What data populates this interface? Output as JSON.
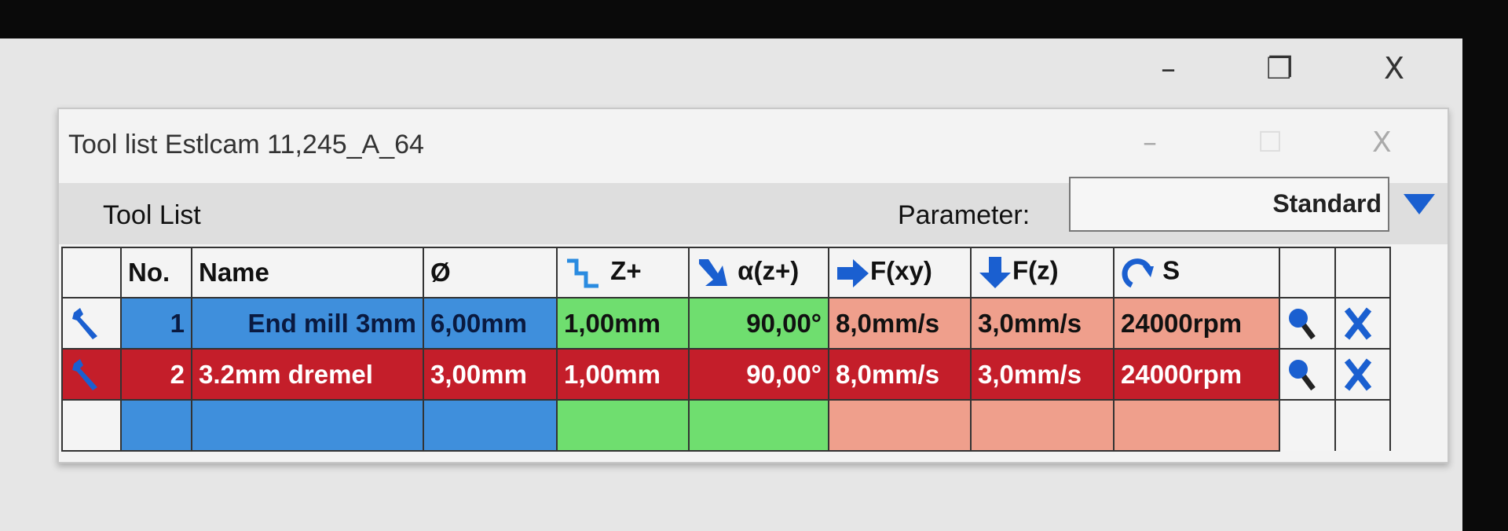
{
  "outer_window": {
    "minimize": "–",
    "restore": "❐",
    "close": "X"
  },
  "dialog": {
    "title": "Tool list Estlcam 11,245_A_64",
    "minimize": "–",
    "maximize": "☐",
    "close": "X",
    "toolbar": {
      "label": "Tool List",
      "parameter_label": "Parameter:",
      "parameter_value": "Standard"
    }
  },
  "table": {
    "headers": [
      "",
      "No.",
      "Name",
      "Ø",
      "Z+",
      "α(z+)",
      "F(xy)",
      "F(z)",
      "S",
      "",
      ""
    ],
    "header_icons": [
      "",
      "",
      "",
      "",
      "step-down-icon",
      "plunge-angle-icon",
      "arrow-right-icon",
      "arrow-down-icon",
      "spindle-rotation-icon",
      "",
      ""
    ],
    "rows": [
      {
        "no": "1",
        "name": "End mill 3mm",
        "diameter": "6,00mm",
        "z_step": "1,00mm",
        "angle": "90,00°",
        "feed_xy": "8,0mm/s",
        "feed_z": "3,0mm/s",
        "speed": "24000rpm",
        "selected": false
      },
      {
        "no": "2",
        "name": "3.2mm dremel",
        "diameter": "3,00mm",
        "z_step": "1,00mm",
        "angle": "90,00°",
        "feed_xy": "8,0mm/s",
        "feed_z": "3,0mm/s",
        "speed": "24000rpm",
        "selected": true
      }
    ]
  },
  "colors": {
    "geometry": "#3f8fdc",
    "depth": "#6fde6f",
    "feeds": "#ef9f8c",
    "selected_row": "#c41e2a",
    "icon_blue": "#1a5fd0"
  }
}
